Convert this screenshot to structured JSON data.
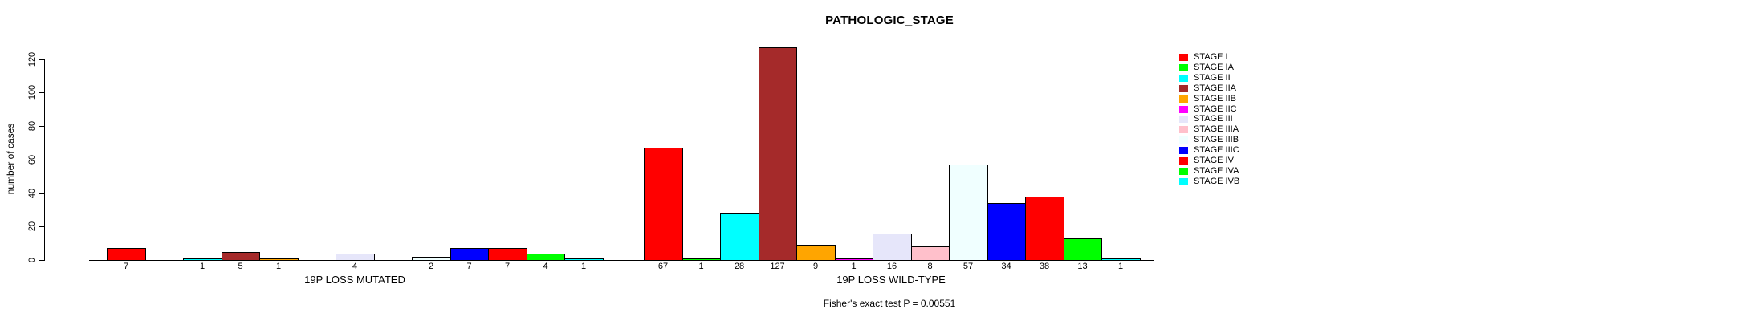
{
  "chart_data": {
    "type": "bar",
    "title": "PATHOLOGIC_STAGE",
    "ylabel": "number of cases",
    "ylim": [
      0,
      127
    ],
    "yticks": [
      0,
      20,
      40,
      60,
      80,
      100,
      120
    ],
    "grid": false,
    "legend_position": "right",
    "categories": [
      "STAGE I",
      "STAGE IA",
      "STAGE II",
      "STAGE IIA",
      "STAGE IIB",
      "STAGE IIC",
      "STAGE III",
      "STAGE IIIA",
      "STAGE IIIB",
      "STAGE IIIC",
      "STAGE IV",
      "STAGE IVA",
      "STAGE IVB"
    ],
    "palette": [
      "#FF0000",
      "#00FF00",
      "#00FFFF",
      "#A52A2A",
      "#FFA500",
      "#FF00FF",
      "#E6E6FA",
      "#FFC0CB",
      "#F0FFFF",
      "#0000FF",
      "#FF0000",
      "#00FF00",
      "#00FFFF"
    ],
    "groups": [
      {
        "label": "19P LOSS MUTATED",
        "values": [
          7,
          0,
          1,
          5,
          1,
          0,
          4,
          0,
          2,
          7,
          7,
          4,
          1
        ]
      },
      {
        "label": "19P LOSS WILD-TYPE",
        "values": [
          67,
          1,
          28,
          127,
          9,
          1,
          16,
          8,
          57,
          34,
          38,
          13,
          1
        ]
      }
    ],
    "annotation": "Fisher's exact test P = 0.00551"
  }
}
